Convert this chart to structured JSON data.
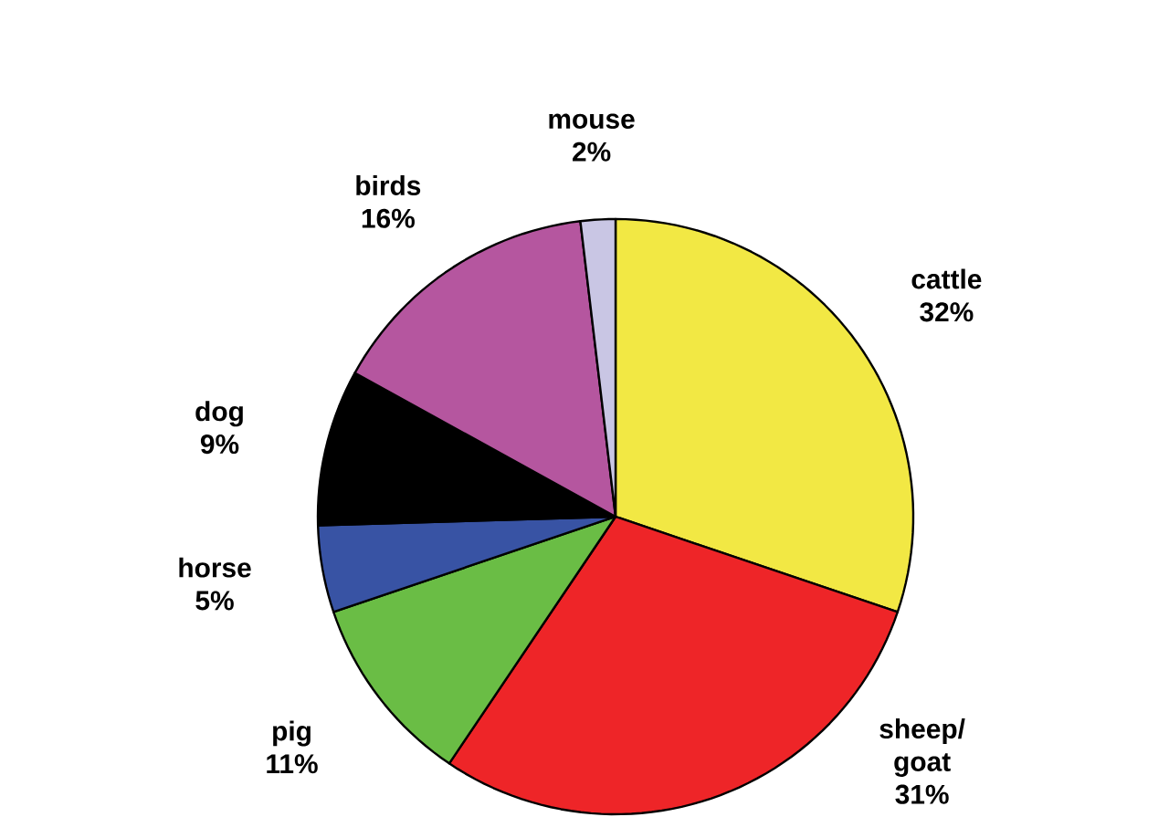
{
  "chart_data": {
    "type": "pie",
    "categories": [
      "cattle",
      "sheep/ goat",
      "pig",
      "horse",
      "dog",
      "birds",
      "mouse"
    ],
    "values": [
      32,
      31,
      11,
      5,
      9,
      16,
      2
    ],
    "value_labels": [
      "32%",
      "31%",
      "11%",
      "5%",
      "9%",
      "16%",
      "2%"
    ],
    "colors": [
      "#f2e844",
      "#ee2528",
      "#6abd45",
      "#3853a4",
      "#000000",
      "#b5569f",
      "#c9c6e4"
    ]
  }
}
